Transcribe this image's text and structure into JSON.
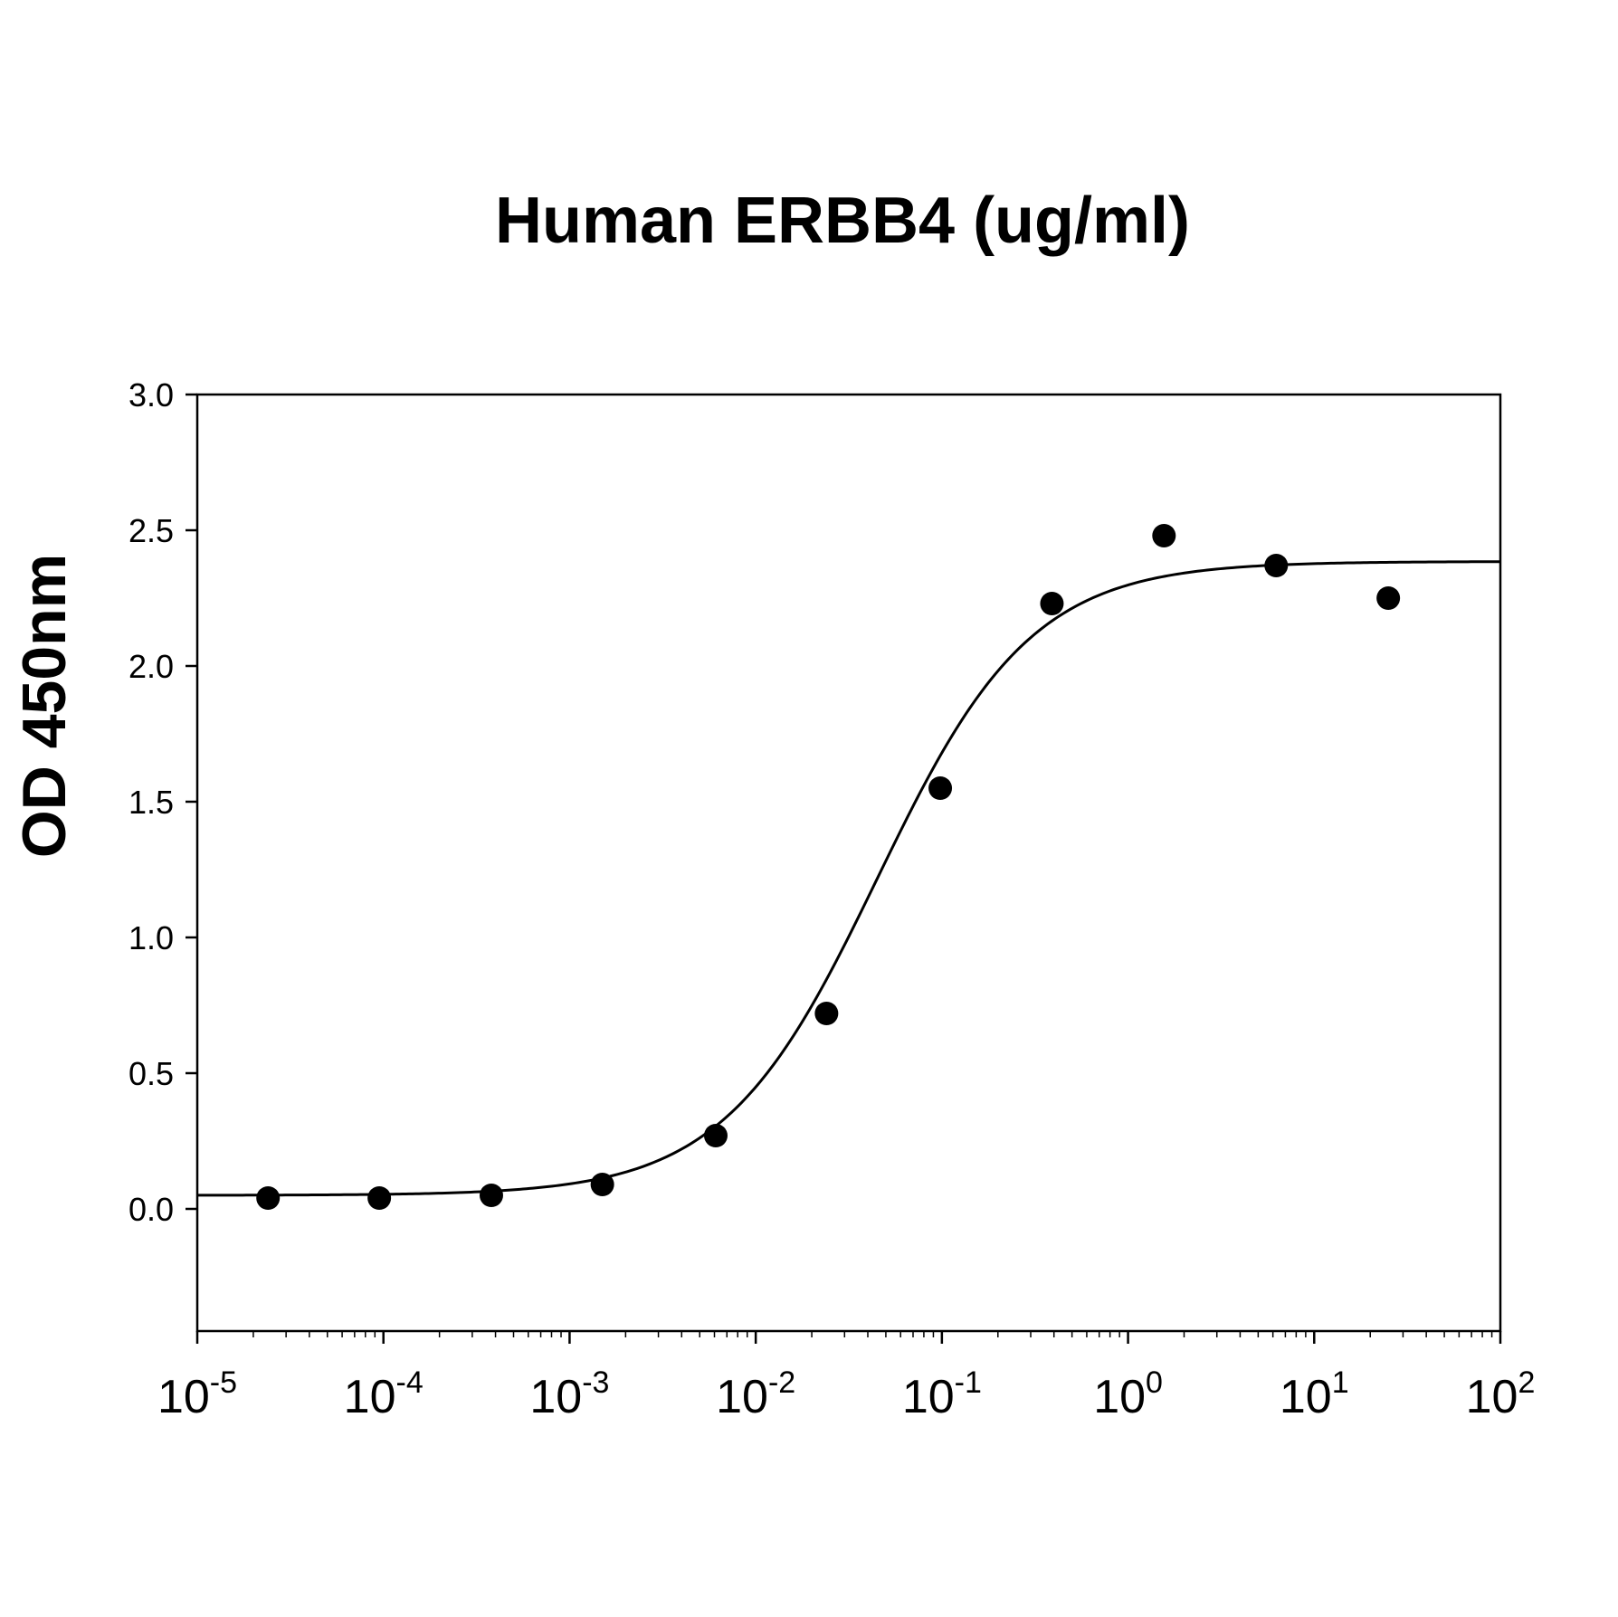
{
  "chart_data": {
    "type": "scatter",
    "title": "Human ERBB4 (ug/ml)",
    "xlabel": "",
    "ylabel": "OD 450nm",
    "x_scale": "log",
    "xlim": [
      1e-05,
      100
    ],
    "ylim": [
      -0.45,
      3.0
    ],
    "y_ticks": [
      "0.0",
      "0.5",
      "1.0",
      "1.5",
      "2.0",
      "2.5",
      "3.0"
    ],
    "x_ticks": [
      {
        "base": "10",
        "exp": "-5"
      },
      {
        "base": "10",
        "exp": "-4"
      },
      {
        "base": "10",
        "exp": "-3"
      },
      {
        "base": "10",
        "exp": "-2"
      },
      {
        "base": "10",
        "exp": "-1"
      },
      {
        "base": "10",
        "exp": "0"
      },
      {
        "base": "10",
        "exp": "1"
      },
      {
        "base": "10",
        "exp": "2"
      }
    ],
    "grid": false,
    "legend": "none",
    "series": [
      {
        "type": "scatter",
        "x": [
          2.4e-05,
          9.5e-05,
          0.00038,
          0.0015,
          0.0061,
          0.024,
          0.098,
          0.39,
          1.56,
          6.25,
          25
        ],
        "y": [
          0.04,
          0.04,
          0.05,
          0.09,
          0.27,
          0.72,
          1.55,
          2.23,
          2.48,
          2.37,
          2.25
        ]
      }
    ],
    "fit_curve": {
      "model": "4-parameter logistic",
      "bottom": 0.05,
      "top": 2.385,
      "ec50": 0.045,
      "hill": 1.05
    },
    "colors": {
      "marks": "#000000",
      "background": "#ffffff"
    }
  }
}
